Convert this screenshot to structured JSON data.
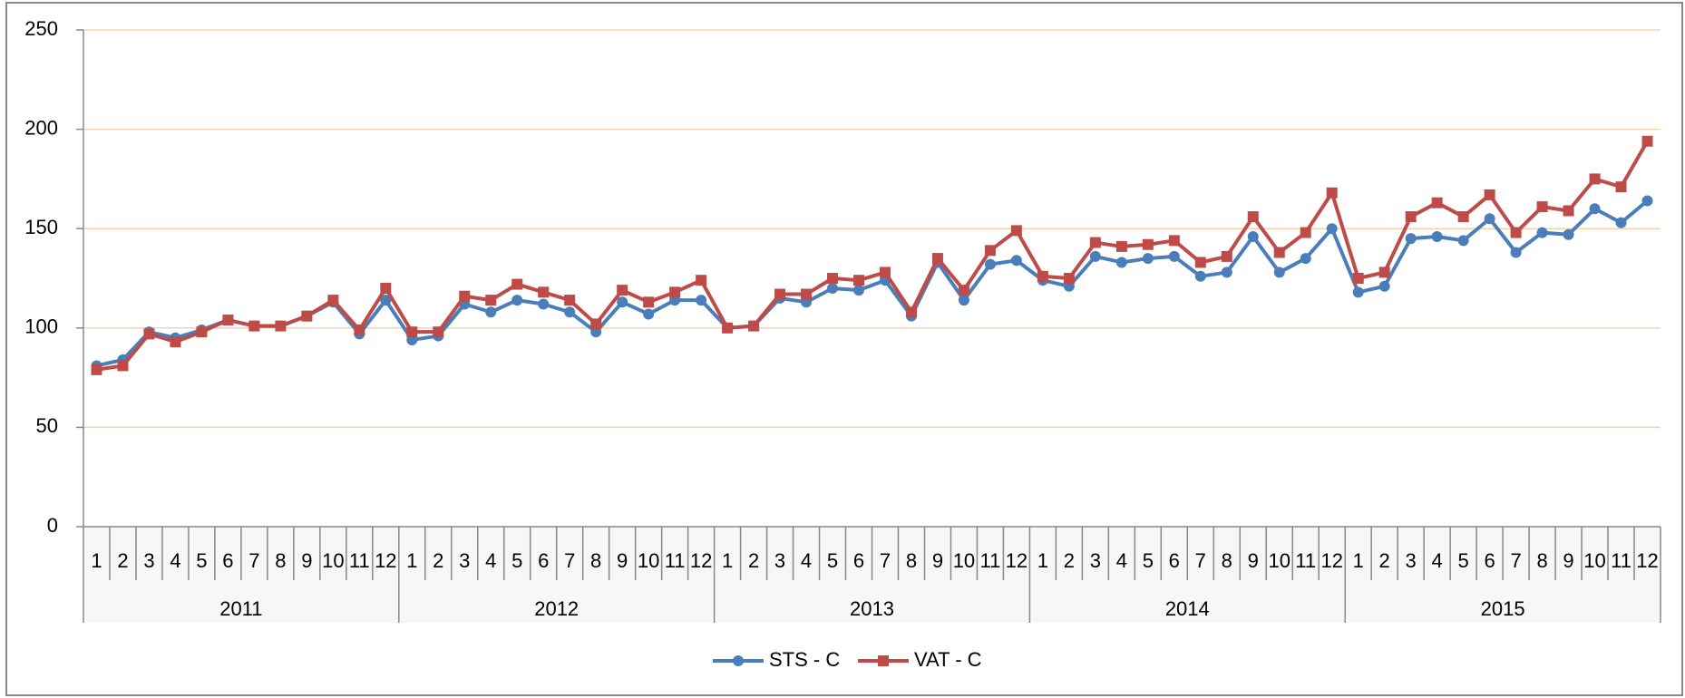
{
  "chart_data": {
    "type": "line",
    "categories": [
      "1",
      "2",
      "3",
      "4",
      "5",
      "6",
      "7",
      "8",
      "9",
      "10",
      "11",
      "12",
      "1",
      "2",
      "3",
      "4",
      "5",
      "6",
      "7",
      "8",
      "9",
      "10",
      "11",
      "12",
      "1",
      "2",
      "3",
      "4",
      "5",
      "6",
      "7",
      "8",
      "9",
      "10",
      "11",
      "12",
      "1",
      "2",
      "3",
      "4",
      "5",
      "6",
      "7",
      "8",
      "9",
      "10",
      "11",
      "12",
      "1",
      "2",
      "3",
      "4",
      "5",
      "6",
      "7",
      "8",
      "9",
      "10",
      "11",
      "12"
    ],
    "years": [
      "2011",
      "2012",
      "2013",
      "2014",
      "2015"
    ],
    "series": [
      {
        "name": "STS - C",
        "color": "#4a7ebb",
        "marker": "circle",
        "values": [
          81,
          84,
          98,
          95,
          99,
          104,
          101,
          101,
          106,
          113,
          97,
          114,
          94,
          96,
          112,
          108,
          114,
          112,
          108,
          98,
          113,
          107,
          114,
          114,
          100,
          101,
          115,
          113,
          120,
          119,
          124,
          106,
          133,
          114,
          132,
          134,
          124,
          121,
          136,
          133,
          135,
          136,
          126,
          128,
          146,
          128,
          135,
          150,
          118,
          121,
          145,
          146,
          144,
          155,
          138,
          148,
          147,
          160,
          153,
          164
        ]
      },
      {
        "name": "VAT - C",
        "color": "#be4b48",
        "marker": "square",
        "values": [
          79,
          81,
          97,
          93,
          98,
          104,
          101,
          101,
          106,
          114,
          99,
          120,
          98,
          98,
          116,
          114,
          122,
          118,
          114,
          102,
          119,
          113,
          118,
          124,
          100,
          101,
          117,
          117,
          125,
          124,
          128,
          108,
          135,
          119,
          139,
          149,
          126,
          125,
          143,
          141,
          142,
          144,
          133,
          136,
          156,
          138,
          148,
          168,
          125,
          128,
          156,
          163,
          156,
          167,
          148,
          161,
          159,
          175,
          171,
          194
        ]
      }
    ],
    "ylim": [
      0,
      250
    ],
    "yticks": [
      0,
      50,
      100,
      150,
      200,
      250
    ],
    "grid": true,
    "grid_color": "#f6d3ad",
    "legend": "bottom"
  }
}
